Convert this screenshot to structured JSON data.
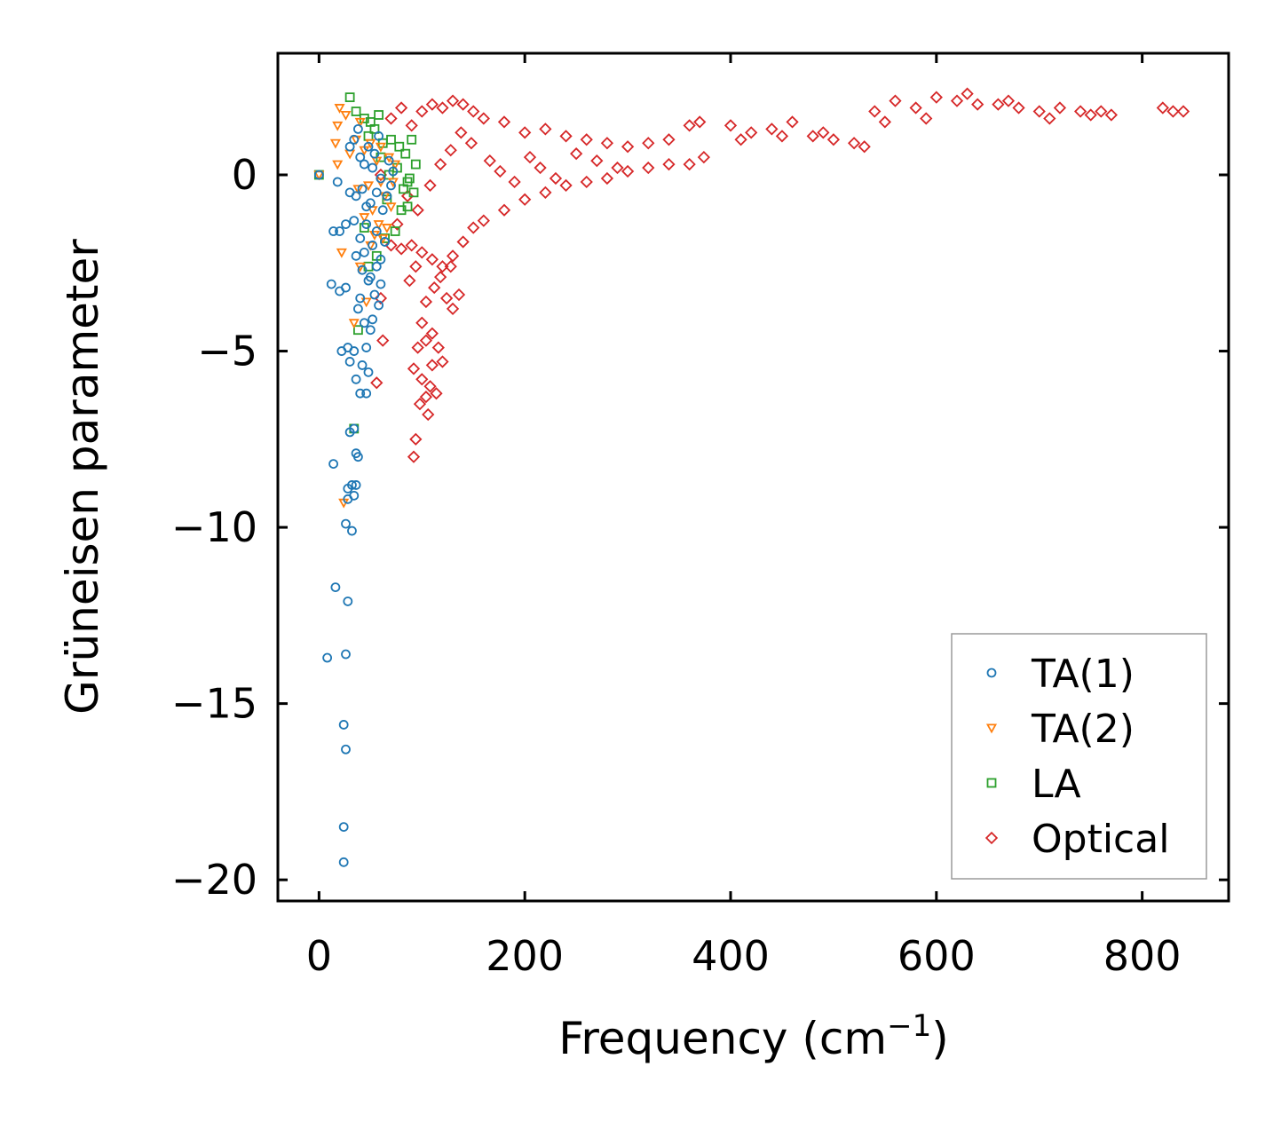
{
  "chart_data": {
    "type": "scatter",
    "title": "",
    "xlabel": "Frequency (cm",
    "xlabel_sup": "−1",
    "xlabel_close": ")",
    "ylabel": "Grüneisen parameter",
    "xlim": [
      -40,
      884
    ],
    "ylim": [
      -20.6,
      3.45
    ],
    "x_ticks": [
      0,
      200,
      400,
      600,
      800
    ],
    "x_tick_labels": [
      "0",
      "200",
      "400",
      "600",
      "800"
    ],
    "y_ticks": [
      0,
      -5,
      -10,
      -15,
      -20
    ],
    "y_tick_labels": [
      "0",
      "−5",
      "−10",
      "−15",
      "−20"
    ],
    "grid": false,
    "legend_position": "lower-right",
    "series": [
      {
        "name": "TA(1)",
        "marker": "circle",
        "color": "#1f77b4",
        "points": [
          [
            0,
            0
          ],
          [
            18,
            -0.2
          ],
          [
            14,
            -1.6
          ],
          [
            20,
            -1.6
          ],
          [
            26,
            -1.4
          ],
          [
            12,
            -3.1
          ],
          [
            20,
            -3.3
          ],
          [
            26,
            -3.2
          ],
          [
            22,
            -5.0
          ],
          [
            28,
            -4.9
          ],
          [
            30,
            -5.3
          ],
          [
            34,
            -5.0
          ],
          [
            36,
            -5.8
          ],
          [
            40,
            -6.2
          ],
          [
            46,
            -6.2
          ],
          [
            30,
            -7.3
          ],
          [
            34,
            -7.2
          ],
          [
            36,
            -7.9
          ],
          [
            38,
            -8.0
          ],
          [
            14,
            -8.2
          ],
          [
            28,
            -8.9
          ],
          [
            32,
            -8.8
          ],
          [
            36,
            -8.8
          ],
          [
            28,
            -9.2
          ],
          [
            34,
            -9.1
          ],
          [
            26,
            -9.9
          ],
          [
            32,
            -10.1
          ],
          [
            16,
            -11.7
          ],
          [
            28,
            -12.1
          ],
          [
            8,
            -13.7
          ],
          [
            26,
            -13.6
          ],
          [
            24,
            -15.6
          ],
          [
            26,
            -16.3
          ],
          [
            24,
            -18.5
          ],
          [
            24,
            -19.5
          ],
          [
            30,
            0.8
          ],
          [
            34,
            1.0
          ],
          [
            38,
            1.3
          ],
          [
            40,
            0.5
          ],
          [
            44,
            0.3
          ],
          [
            48,
            0.8
          ],
          [
            52,
            0.2
          ],
          [
            30,
            -0.5
          ],
          [
            36,
            -0.6
          ],
          [
            42,
            -0.4
          ],
          [
            50,
            -0.8
          ],
          [
            56,
            -0.5
          ],
          [
            60,
            -0.1
          ],
          [
            34,
            -1.3
          ],
          [
            40,
            -1.8
          ],
          [
            46,
            -1.4
          ],
          [
            52,
            -2.0
          ],
          [
            56,
            -2.6
          ],
          [
            36,
            -2.3
          ],
          [
            42,
            -2.7
          ],
          [
            48,
            -3.0
          ],
          [
            54,
            -3.4
          ],
          [
            58,
            -3.7
          ],
          [
            60,
            -3.1
          ],
          [
            38,
            -3.8
          ],
          [
            44,
            -4.2
          ],
          [
            50,
            -4.4
          ],
          [
            46,
            -4.9
          ],
          [
            52,
            -4.1
          ],
          [
            42,
            -5.4
          ],
          [
            48,
            -5.6
          ],
          [
            60,
            -2.4
          ],
          [
            64,
            -1.9
          ],
          [
            66,
            -0.6
          ],
          [
            70,
            -0.3
          ],
          [
            68,
            0.4
          ],
          [
            72,
            0.1
          ],
          [
            62,
            -1.0
          ],
          [
            54,
            0.6
          ],
          [
            58,
            1.1
          ],
          [
            44,
            -2.2
          ],
          [
            50,
            -2.9
          ],
          [
            40,
            -3.5
          ],
          [
            56,
            -1.6
          ],
          [
            46,
            -0.9
          ]
        ]
      },
      {
        "name": "TA(2)",
        "marker": "triangle-down",
        "color": "#ff7f0e",
        "points": [
          [
            0,
            0
          ],
          [
            20,
            1.9
          ],
          [
            26,
            1.7
          ],
          [
            18,
            1.4
          ],
          [
            16,
            0.9
          ],
          [
            18,
            0.3
          ],
          [
            30,
            0.6
          ],
          [
            36,
            1.0
          ],
          [
            40,
            1.5
          ],
          [
            44,
            0.7
          ],
          [
            50,
            0.9
          ],
          [
            56,
            0.4
          ],
          [
            60,
            -0.2
          ],
          [
            64,
            -0.6
          ],
          [
            48,
            -0.3
          ],
          [
            52,
            -1.0
          ],
          [
            58,
            -1.4
          ],
          [
            62,
            -1.8
          ],
          [
            66,
            -1.5
          ],
          [
            70,
            -0.9
          ],
          [
            72,
            -0.2
          ],
          [
            68,
            0.5
          ],
          [
            44,
            -1.2
          ],
          [
            40,
            -2.6
          ],
          [
            22,
            -2.2
          ],
          [
            50,
            -2.0
          ],
          [
            46,
            -3.6
          ],
          [
            34,
            -4.2
          ],
          [
            24,
            -9.3
          ],
          [
            38,
            -0.4
          ],
          [
            54,
            -1.7
          ],
          [
            74,
            0.3
          ],
          [
            60,
            0.8
          ]
        ]
      },
      {
        "name": "LA",
        "marker": "square",
        "color": "#2ca02c",
        "points": [
          [
            0,
            0
          ],
          [
            30,
            2.2
          ],
          [
            36,
            1.8
          ],
          [
            44,
            1.6
          ],
          [
            50,
            1.5
          ],
          [
            58,
            1.7
          ],
          [
            48,
            1.1
          ],
          [
            54,
            1.3
          ],
          [
            62,
            0.9
          ],
          [
            70,
            1.0
          ],
          [
            78,
            0.8
          ],
          [
            84,
            0.6
          ],
          [
            90,
            1.0
          ],
          [
            94,
            0.3
          ],
          [
            92,
            -0.5
          ],
          [
            86,
            -0.2
          ],
          [
            76,
            0.2
          ],
          [
            68,
            0.0
          ],
          [
            80,
            -1.0
          ],
          [
            86,
            -0.9
          ],
          [
            74,
            -1.6
          ],
          [
            64,
            -1.8
          ],
          [
            56,
            -2.3
          ],
          [
            48,
            -2.6
          ],
          [
            44,
            -1.5
          ],
          [
            38,
            -4.4
          ],
          [
            34,
            -7.2
          ],
          [
            60,
            0.5
          ],
          [
            66,
            -0.7
          ],
          [
            82,
            -0.4
          ],
          [
            88,
            -0.1
          ]
        ]
      },
      {
        "name": "Optical",
        "marker": "diamond",
        "color": "#d62728",
        "points": [
          [
            60,
            0.0
          ],
          [
            70,
            1.6
          ],
          [
            80,
            1.9
          ],
          [
            90,
            1.4
          ],
          [
            100,
            1.8
          ],
          [
            110,
            2.0
          ],
          [
            120,
            1.9
          ],
          [
            130,
            2.1
          ],
          [
            140,
            2.0
          ],
          [
            150,
            1.8
          ],
          [
            160,
            1.6
          ],
          [
            180,
            1.5
          ],
          [
            200,
            1.2
          ],
          [
            220,
            1.3
          ],
          [
            240,
            1.1
          ],
          [
            260,
            1.0
          ],
          [
            280,
            0.9
          ],
          [
            300,
            0.8
          ],
          [
            320,
            0.9
          ],
          [
            340,
            1.0
          ],
          [
            360,
            1.4
          ],
          [
            370,
            1.5
          ],
          [
            374,
            0.5
          ],
          [
            360,
            0.3
          ],
          [
            340,
            0.3
          ],
          [
            320,
            0.2
          ],
          [
            300,
            0.1
          ],
          [
            280,
            -0.1
          ],
          [
            260,
            -0.2
          ],
          [
            240,
            -0.3
          ],
          [
            220,
            -0.5
          ],
          [
            200,
            -0.7
          ],
          [
            180,
            -1.0
          ],
          [
            160,
            -1.3
          ],
          [
            150,
            -1.5
          ],
          [
            140,
            -1.9
          ],
          [
            130,
            -2.3
          ],
          [
            120,
            -2.6
          ],
          [
            110,
            -2.4
          ],
          [
            100,
            -2.2
          ],
          [
            90,
            -2.0
          ],
          [
            80,
            -2.1
          ],
          [
            70,
            -2.0
          ],
          [
            60,
            -3.5
          ],
          [
            56,
            -5.9
          ],
          [
            62,
            -4.7
          ],
          [
            76,
            -1.4
          ],
          [
            86,
            -0.6
          ],
          [
            96,
            -1.0
          ],
          [
            108,
            -0.3
          ],
          [
            118,
            0.3
          ],
          [
            128,
            0.7
          ],
          [
            138,
            1.2
          ],
          [
            148,
            0.9
          ],
          [
            166,
            0.4
          ],
          [
            176,
            0.1
          ],
          [
            190,
            -0.2
          ],
          [
            205,
            0.5
          ],
          [
            215,
            0.2
          ],
          [
            230,
            -0.1
          ],
          [
            250,
            0.6
          ],
          [
            270,
            0.4
          ],
          [
            290,
            0.2
          ],
          [
            88,
            -3.0
          ],
          [
            94,
            -2.6
          ],
          [
            104,
            -3.6
          ],
          [
            112,
            -3.2
          ],
          [
            118,
            -2.9
          ],
          [
            124,
            -3.5
          ],
          [
            130,
            -3.8
          ],
          [
            136,
            -3.4
          ],
          [
            128,
            -2.6
          ],
          [
            100,
            -4.2
          ],
          [
            104,
            -4.7
          ],
          [
            110,
            -4.5
          ],
          [
            116,
            -4.9
          ],
          [
            120,
            -5.3
          ],
          [
            96,
            -4.9
          ],
          [
            92,
            -5.5
          ],
          [
            100,
            -5.8
          ],
          [
            108,
            -6.0
          ],
          [
            104,
            -6.3
          ],
          [
            98,
            -6.5
          ],
          [
            94,
            -7.5
          ],
          [
            92,
            -8.0
          ],
          [
            110,
            -5.4
          ],
          [
            114,
            -6.2
          ],
          [
            106,
            -6.8
          ],
          [
            400,
            1.4
          ],
          [
            420,
            1.2
          ],
          [
            440,
            1.3
          ],
          [
            460,
            1.5
          ],
          [
            480,
            1.1
          ],
          [
            500,
            1.0
          ],
          [
            520,
            0.9
          ],
          [
            540,
            1.8
          ],
          [
            560,
            2.1
          ],
          [
            580,
            1.9
          ],
          [
            600,
            2.2
          ],
          [
            620,
            2.1
          ],
          [
            640,
            2.0
          ],
          [
            660,
            2.0
          ],
          [
            680,
            1.9
          ],
          [
            700,
            1.8
          ],
          [
            720,
            1.9
          ],
          [
            740,
            1.8
          ],
          [
            760,
            1.8
          ],
          [
            770,
            1.7
          ],
          [
            820,
            1.9
          ],
          [
            830,
            1.8
          ],
          [
            840,
            1.8
          ],
          [
            410,
            1.0
          ],
          [
            450,
            1.1
          ],
          [
            490,
            1.2
          ],
          [
            530,
            0.8
          ],
          [
            550,
            1.5
          ],
          [
            590,
            1.6
          ],
          [
            630,
            2.3
          ],
          [
            670,
            2.1
          ],
          [
            710,
            1.6
          ],
          [
            750,
            1.7
          ]
        ]
      }
    ]
  }
}
